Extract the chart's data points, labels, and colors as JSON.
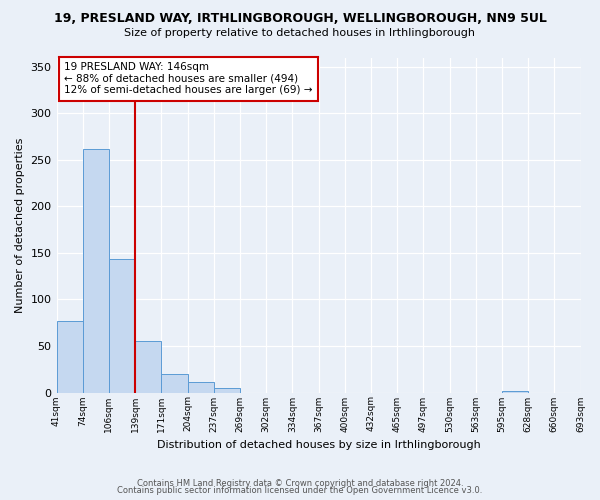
{
  "title": "19, PRESLAND WAY, IRTHLINGBOROUGH, WELLINGBOROUGH, NN9 5UL",
  "subtitle": "Size of property relative to detached houses in Irthlingborough",
  "xlabel": "Distribution of detached houses by size in Irthlingborough",
  "ylabel": "Number of detached properties",
  "bar_values": [
    77,
    262,
    143,
    55,
    20,
    11,
    5,
    0,
    0,
    0,
    0,
    0,
    0,
    0,
    0,
    0,
    0,
    2
  ],
  "bin_labels": [
    "41sqm",
    "74sqm",
    "106sqm",
    "139sqm",
    "171sqm",
    "204sqm",
    "237sqm",
    "269sqm",
    "302sqm",
    "334sqm",
    "367sqm",
    "400sqm",
    "432sqm",
    "465sqm",
    "497sqm",
    "530sqm",
    "563sqm",
    "595sqm",
    "628sqm",
    "660sqm",
    "693sqm"
  ],
  "bar_color": "#c5d8f0",
  "bar_edge_color": "#5b9bd5",
  "vline_color": "#cc0000",
  "annotation_text": "19 PRESLAND WAY: 146sqm\n← 88% of detached houses are smaller (494)\n12% of semi-detached houses are larger (69) →",
  "annotation_box_color": "#ffffff",
  "annotation_border_color": "#cc0000",
  "ylim": [
    0,
    360
  ],
  "yticks": [
    0,
    50,
    100,
    150,
    200,
    250,
    300,
    350
  ],
  "footer_line1": "Contains HM Land Registry data © Crown copyright and database right 2024.",
  "footer_line2": "Contains public sector information licensed under the Open Government Licence v3.0.",
  "bg_color": "#eaf0f8",
  "plot_bg_color": "#eaf0f8",
  "n_bins": 18,
  "n_ticks": 21
}
